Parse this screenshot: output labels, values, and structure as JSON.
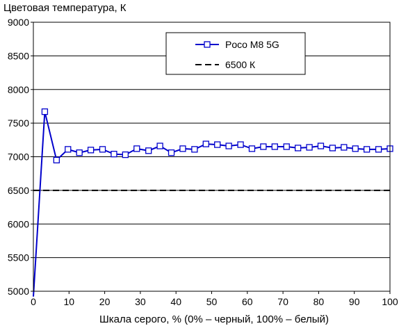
{
  "chart_data": {
    "type": "line",
    "ylabel": "Цветовая температура, К",
    "xlabel": "Шкала серого, % (0% – черный, 100% – белый)",
    "xlim": [
      0,
      100
    ],
    "ylim": [
      5000,
      9000
    ],
    "xticks": [
      "0",
      "10",
      "20",
      "30",
      "40",
      "50",
      "60",
      "70",
      "80",
      "90",
      "100"
    ],
    "yticks": [
      "5000",
      "5500",
      "6000",
      "6500",
      "7000",
      "7500",
      "8000",
      "8500",
      "9000"
    ],
    "grid": "horizontal",
    "legend_position": "top-right",
    "series": [
      {
        "name": "Poco M8 5G",
        "color": "#0000cc",
        "marker": "square",
        "x": [
          0,
          3.2,
          6.5,
          9.7,
          12.9,
          16.1,
          19.4,
          22.6,
          25.8,
          29,
          32.3,
          35.5,
          38.7,
          41.9,
          45.2,
          48.4,
          51.6,
          54.8,
          58.1,
          61.3,
          64.5,
          67.7,
          71,
          74.2,
          77.4,
          80.6,
          83.9,
          87.1,
          90.3,
          93.5,
          96.8,
          100
        ],
        "values": [
          4920,
          7670,
          6950,
          7110,
          7060,
          7100,
          7110,
          7040,
          7030,
          7120,
          7090,
          7160,
          7060,
          7120,
          7110,
          7190,
          7180,
          7160,
          7180,
          7120,
          7150,
          7150,
          7150,
          7130,
          7140,
          7160,
          7130,
          7140,
          7120,
          7110,
          7110,
          7120
        ]
      },
      {
        "name": "6500 К",
        "color": "#000000",
        "dash": true,
        "x": [
          0,
          100
        ],
        "values": [
          6500,
          6500
        ]
      }
    ]
  }
}
